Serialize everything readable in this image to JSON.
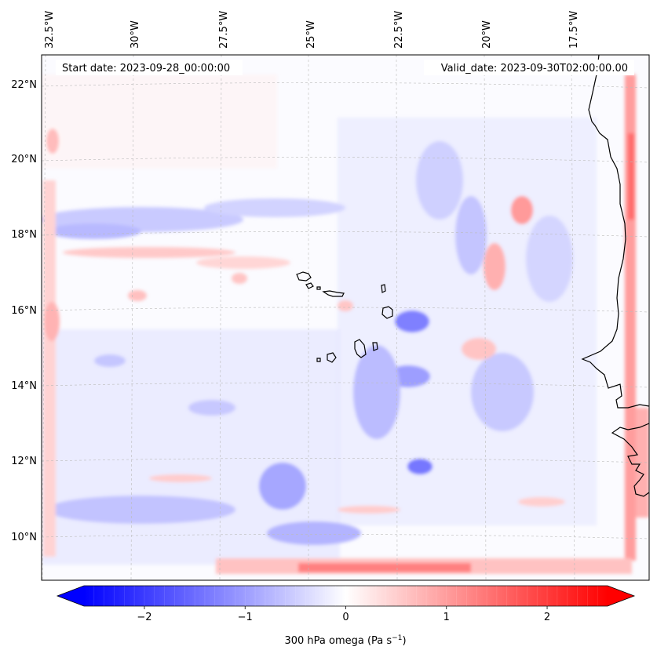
{
  "map": {
    "field": "300 hPa omega",
    "start_label": "Start date: 2023-09-28_00:00:00",
    "valid_label": "Valid_date: 2023-09-30T02:00:00.00",
    "lon_ticks": [
      "32.5°W",
      "30°W",
      "27.5°W",
      "25°W",
      "22.5°W",
      "20°W",
      "17.5°W"
    ],
    "lat_ticks": [
      "22°N",
      "20°N",
      "18°N",
      "16°N",
      "14°N",
      "12°N",
      "10°N"
    ],
    "extent": {
      "lon_min": -32.6,
      "lon_max": -15.3,
      "lat_min": 8.9,
      "lat_max": 22.8
    },
    "colormap": "bwr",
    "colors": {
      "negative": "#0000ff",
      "neutral": "#ffffff",
      "positive": "#ff0000",
      "coast": "#000000"
    }
  },
  "colorbar": {
    "label_main": "300 hPa omega (Pa s",
    "label_exp": "−1",
    "label_close": ")",
    "vmin": -2.6,
    "vmax": 2.6,
    "ticks": [
      {
        "value": -2,
        "label": "−2"
      },
      {
        "value": -1,
        "label": "−1"
      },
      {
        "value": 0,
        "label": "0"
      },
      {
        "value": 1,
        "label": "1"
      },
      {
        "value": 2,
        "label": "2"
      }
    ]
  }
}
